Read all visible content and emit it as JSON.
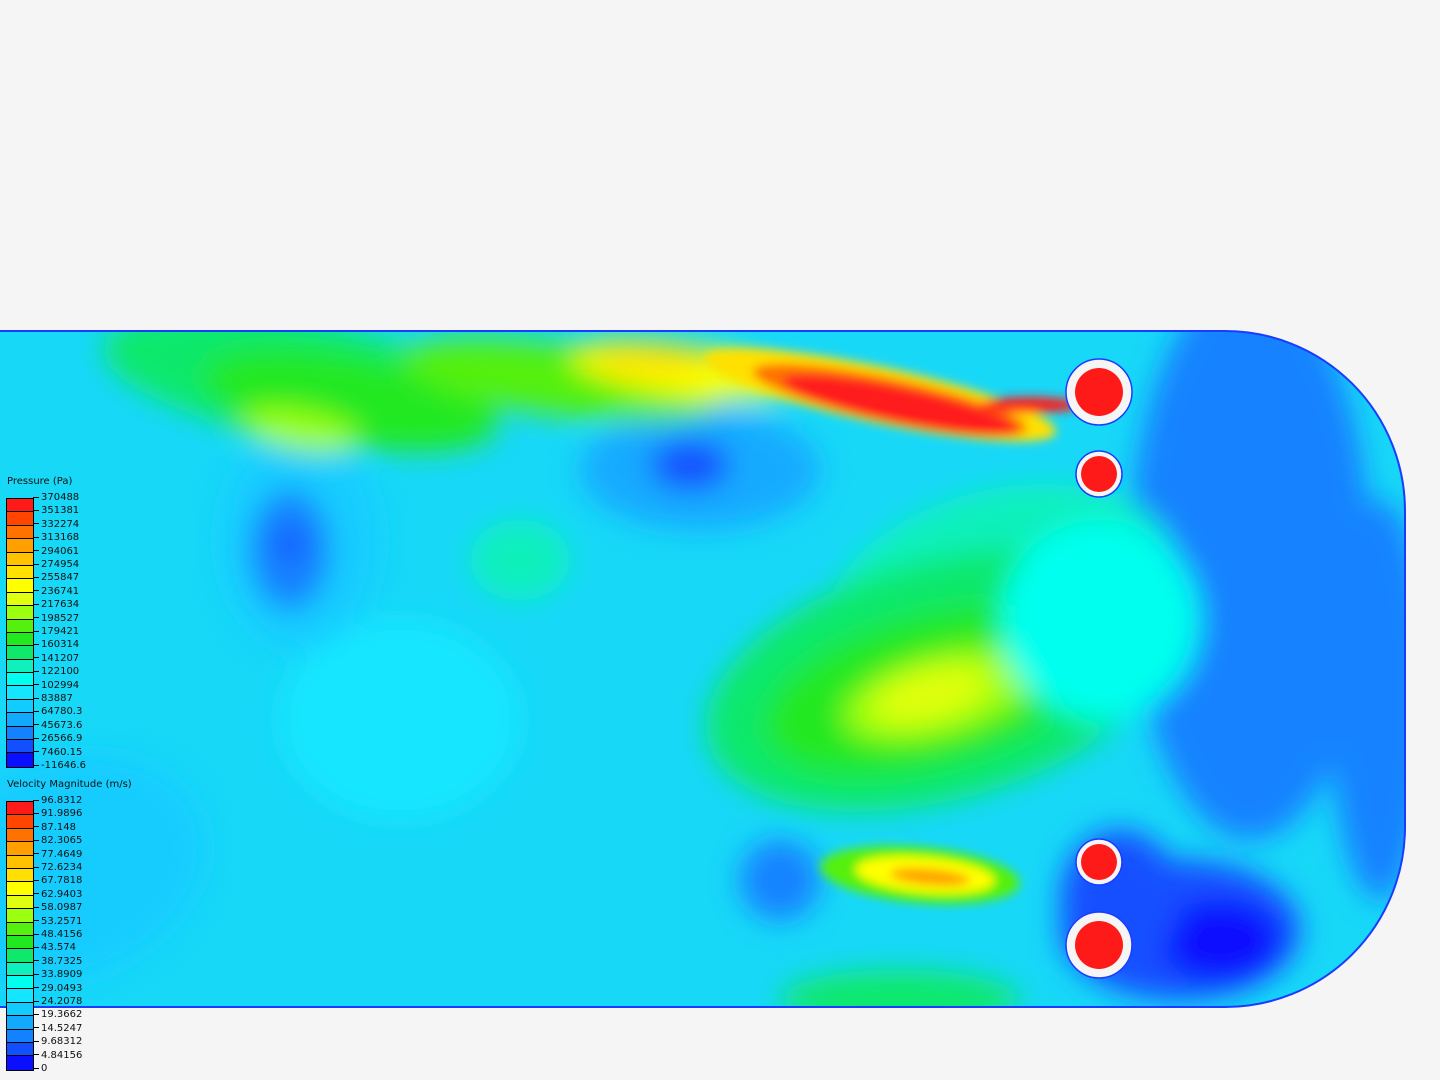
{
  "colormap": [
    "#ff1a1a",
    "#ff4500",
    "#ff7200",
    "#ffa000",
    "#ffc200",
    "#ffe000",
    "#ffff00",
    "#e0ff10",
    "#9cff10",
    "#55f010",
    "#22e820",
    "#10e86c",
    "#10f0bc",
    "#00ffee",
    "#14e6ff",
    "#12ccff",
    "#12aaff",
    "#1282ff",
    "#1250ff",
    "#0a10ff"
  ],
  "pressure_legend": {
    "title": "Pressure (Pa)",
    "labels": [
      "370488",
      "351381",
      "332274",
      "313168",
      "294061",
      "274954",
      "255847",
      "236741",
      "217634",
      "198527",
      "179421",
      "160314",
      "141207",
      "122100",
      "102994",
      "83887",
      "64780.3",
      "45673.6",
      "26566.9",
      "7460.15",
      "-11646.6"
    ]
  },
  "velocity_legend": {
    "title": "Velocity Magnitude (m/s)",
    "labels": [
      "96.8312",
      "91.9896",
      "87.148",
      "82.3065",
      "77.4649",
      "72.6234",
      "67.7818",
      "62.9403",
      "58.0987",
      "53.2571",
      "48.4156",
      "43.574",
      "38.7325",
      "33.8909",
      "29.0493",
      "24.2078",
      "19.3662",
      "14.5247",
      "9.68312",
      "4.84156",
      "0"
    ]
  }
}
